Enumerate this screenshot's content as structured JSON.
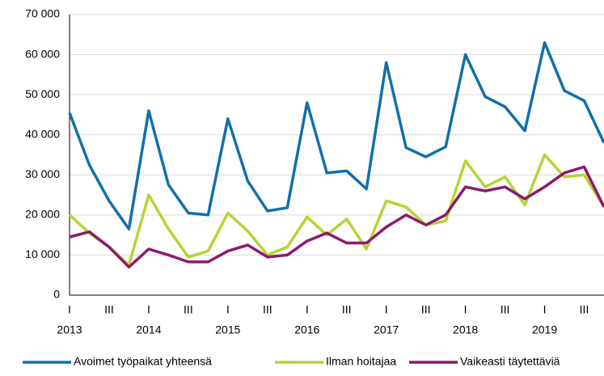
{
  "chart_data": {
    "type": "line",
    "categories": [
      "I",
      null,
      "III",
      null,
      "I",
      null,
      "III",
      null,
      "I",
      null,
      "III",
      null,
      "I",
      null,
      "III",
      null,
      "I",
      null,
      "III",
      null,
      "I",
      null,
      "III",
      null,
      "I",
      null,
      "III",
      null
    ],
    "years": [
      "2013",
      "2014",
      "2015",
      "2016",
      "2017",
      "2018",
      "2019"
    ],
    "series": [
      {
        "name": "Avoimet työpaikat yhteensä",
        "color": "#1170aa",
        "values": [
          45500,
          32500,
          23500,
          16500,
          46000,
          27500,
          20500,
          20000,
          44000,
          28500,
          21000,
          21800,
          48000,
          30500,
          31000,
          26500,
          58000,
          36800,
          34500,
          37000,
          60000,
          49500,
          47000,
          41000,
          63000,
          51000,
          48500,
          38000
        ]
      },
      {
        "name": "Ilman hoitajaa",
        "color": "#b6d433",
        "values": [
          20000,
          15500,
          12000,
          7500,
          25000,
          16500,
          9500,
          11000,
          20500,
          16000,
          10000,
          12000,
          19500,
          15000,
          19000,
          11500,
          23500,
          22000,
          17500,
          18500,
          33500,
          27000,
          29500,
          22500,
          35000,
          29500,
          30000,
          22000
        ]
      },
      {
        "name": "Vaikeasti täytettäviä",
        "color": "#8c1a6e",
        "values": [
          14500,
          15800,
          12000,
          7000,
          11500,
          10000,
          8300,
          8300,
          11000,
          12500,
          9500,
          10000,
          13500,
          15500,
          13000,
          13000,
          17000,
          20000,
          17500,
          20000,
          27000,
          26000,
          27000,
          24000,
          27000,
          30500,
          32000,
          22000
        ]
      }
    ],
    "ylim": [
      0,
      70000
    ],
    "yticks": [
      0,
      {
        "value": 10000,
        "label": "10 000"
      },
      {
        "value": 20000,
        "label": "20 000"
      },
      {
        "value": 30000,
        "label": "30 000"
      },
      {
        "value": 40000,
        "label": "40 000"
      },
      {
        "value": 50000,
        "label": "50 000"
      },
      {
        "value": 60000,
        "label": "60 000"
      },
      {
        "value": 70000,
        "label": "70 000"
      }
    ],
    "grid": true
  }
}
